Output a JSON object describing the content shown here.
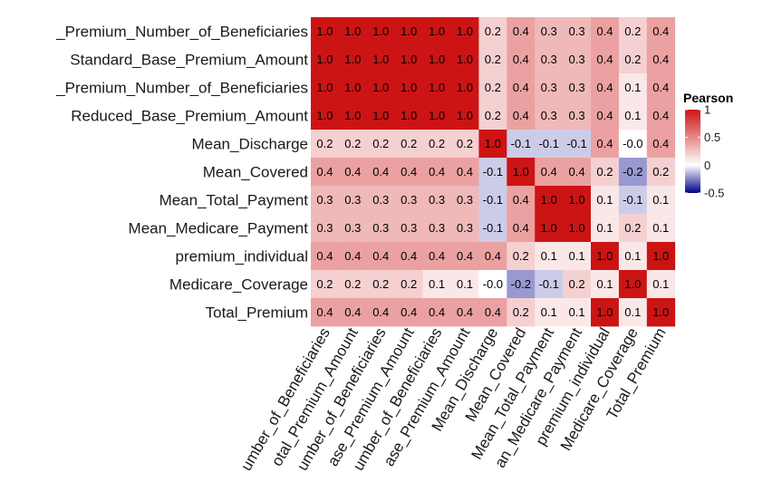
{
  "chart_data": {
    "type": "heatmap",
    "title": "",
    "xlabel": "",
    "ylabel": "",
    "row_labels": [
      "_Premium_Number_of_Beneficiaries",
      "Standard_Base_Premium_Amount",
      "_Premium_Number_of_Beneficiaries",
      "Reduced_Base_Premium_Amount",
      "Mean_Discharge",
      "Mean_Covered",
      "Mean_Total_Payment",
      "Mean_Medicare_Payment",
      "premium_individual",
      "Medicare_Coverage",
      "Total_Premium"
    ],
    "col_labels": [
      "umber_of_Beneficiaries",
      "otal_Premium_Amount",
      "umber_of_Beneficiaries",
      "ase_Premium_Amount",
      "umber_of_Beneficiaries",
      "ase_Premium_Amount",
      "Mean_Discharge",
      "Mean_Covered",
      "Mean_Total_Payment",
      "an_Medicare_Payment",
      "premium_individual",
      "Medicare_Coverage",
      "Total_Premium"
    ],
    "values": [
      [
        1.0,
        1.0,
        1.0,
        1.0,
        1.0,
        1.0,
        0.2,
        0.4,
        0.3,
        0.3,
        0.4,
        0.2,
        0.4
      ],
      [
        1.0,
        1.0,
        1.0,
        1.0,
        1.0,
        1.0,
        0.2,
        0.4,
        0.3,
        0.3,
        0.4,
        0.2,
        0.4
      ],
      [
        1.0,
        1.0,
        1.0,
        1.0,
        1.0,
        1.0,
        0.2,
        0.4,
        0.3,
        0.3,
        0.4,
        0.1,
        0.4
      ],
      [
        1.0,
        1.0,
        1.0,
        1.0,
        1.0,
        1.0,
        0.2,
        0.4,
        0.3,
        0.3,
        0.4,
        0.1,
        0.4
      ],
      [
        0.2,
        0.2,
        0.2,
        0.2,
        0.2,
        0.2,
        1.0,
        -0.1,
        -0.1,
        -0.1,
        0.4,
        -0.0,
        0.4
      ],
      [
        0.4,
        0.4,
        0.4,
        0.4,
        0.4,
        0.4,
        -0.1,
        1.0,
        0.4,
        0.4,
        0.2,
        -0.2,
        0.2
      ],
      [
        0.3,
        0.3,
        0.3,
        0.3,
        0.3,
        0.3,
        -0.1,
        0.4,
        1.0,
        1.0,
        0.1,
        -0.1,
        0.1
      ],
      [
        0.3,
        0.3,
        0.3,
        0.3,
        0.3,
        0.3,
        -0.1,
        0.4,
        1.0,
        1.0,
        0.1,
        0.2,
        0.1
      ],
      [
        0.4,
        0.4,
        0.4,
        0.4,
        0.4,
        0.4,
        0.4,
        0.2,
        0.1,
        0.1,
        1.0,
        0.1,
        1.0
      ],
      [
        0.2,
        0.2,
        0.2,
        0.2,
        0.1,
        0.1,
        -0.0,
        -0.2,
        -0.1,
        0.2,
        0.1,
        1.0,
        0.1
      ],
      [
        0.4,
        0.4,
        0.4,
        0.4,
        0.4,
        0.4,
        0.4,
        0.2,
        0.1,
        0.1,
        1.0,
        0.1,
        1.0
      ]
    ],
    "value_labels": [
      [
        "1.0",
        "1.0",
        "1.0",
        "1.0",
        "1.0",
        "1.0",
        "0.2",
        "0.4",
        "0.3",
        "0.3",
        "0.4",
        "0.2",
        "0.4"
      ],
      [
        "1.0",
        "1.0",
        "1.0",
        "1.0",
        "1.0",
        "1.0",
        "0.2",
        "0.4",
        "0.3",
        "0.3",
        "0.4",
        "0.2",
        "0.4"
      ],
      [
        "1.0",
        "1.0",
        "1.0",
        "1.0",
        "1.0",
        "1.0",
        "0.2",
        "0.4",
        "0.3",
        "0.3",
        "0.4",
        "0.1",
        "0.4"
      ],
      [
        "1.0",
        "1.0",
        "1.0",
        "1.0",
        "1.0",
        "1.0",
        "0.2",
        "0.4",
        "0.3",
        "0.3",
        "0.4",
        "0.1",
        "0.4"
      ],
      [
        "0.2",
        "0.2",
        "0.2",
        "0.2",
        "0.2",
        "0.2",
        "1.0",
        "-0.1",
        "-0.1",
        "-0.1",
        "0.4",
        "-0.0",
        "0.4"
      ],
      [
        "0.4",
        "0.4",
        "0.4",
        "0.4",
        "0.4",
        "0.4",
        "-0.1",
        "1.0",
        "0.4",
        "0.4",
        "0.2",
        "-0.2",
        "0.2"
      ],
      [
        "0.3",
        "0.3",
        "0.3",
        "0.3",
        "0.3",
        "0.3",
        "-0.1",
        "0.4",
        "1.0",
        "1.0",
        "0.1",
        "-0.1",
        "0.1"
      ],
      [
        "0.3",
        "0.3",
        "0.3",
        "0.3",
        "0.3",
        "0.3",
        "-0.1",
        "0.4",
        "1.0",
        "1.0",
        "0.1",
        "0.2",
        "0.1"
      ],
      [
        "0.4",
        "0.4",
        "0.4",
        "0.4",
        "0.4",
        "0.4",
        "0.4",
        "0.2",
        "0.1",
        "0.1",
        "1.0",
        "0.1",
        "1.0"
      ],
      [
        "0.2",
        "0.2",
        "0.2",
        "0.2",
        "0.1",
        "0.1",
        "-0.0",
        "-0.2",
        "-0.1",
        "0.2",
        "0.1",
        "1.0",
        "0.1"
      ],
      [
        "0.4",
        "0.4",
        "0.4",
        "0.4",
        "0.4",
        "0.4",
        "0.4",
        "0.2",
        "0.1",
        "0.1",
        "1.0",
        "0.1",
        "1.0"
      ]
    ],
    "color_range": [
      -0.5,
      1
    ],
    "colors": {
      "low": "#00008b",
      "mid": "#ffffff",
      "high": "#cc1414"
    },
    "legend": {
      "title": "Pearson",
      "placement": "right",
      "ticks": [
        1,
        0.5,
        0,
        -0.5
      ],
      "tick_labels": [
        "1",
        "0.5",
        "0",
        "-0.5"
      ]
    },
    "grid": false
  }
}
